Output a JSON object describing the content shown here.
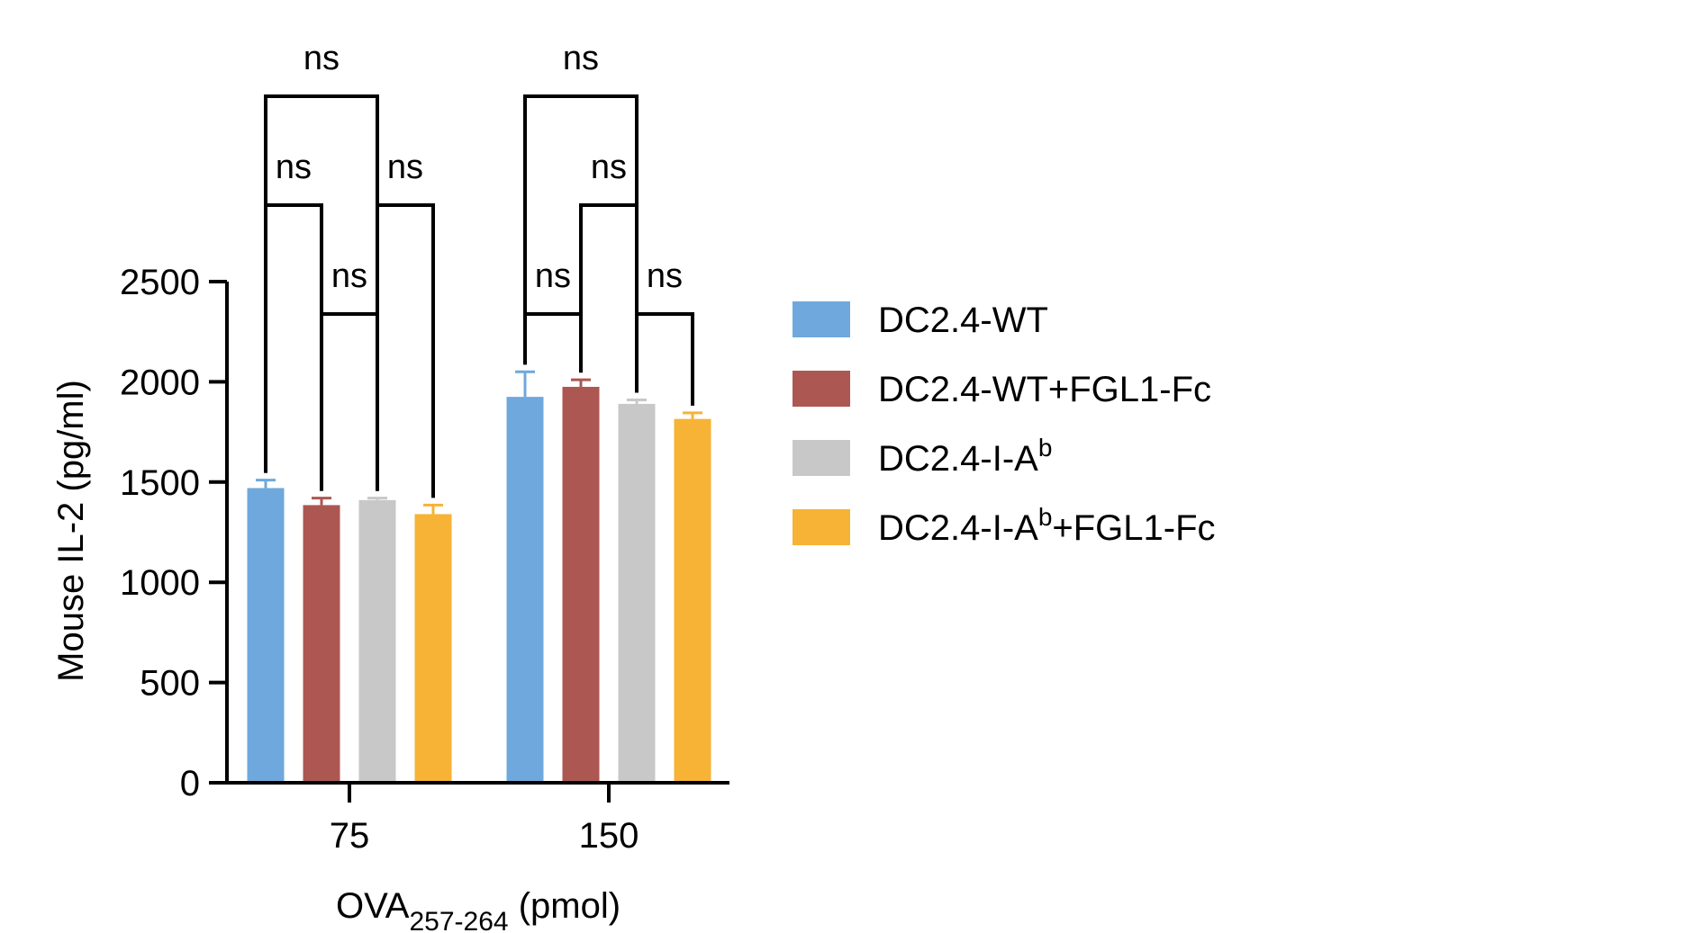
{
  "chart_data": {
    "type": "bar",
    "title": "",
    "xlabel": {
      "main": "OVA",
      "subscript": "257-264",
      "suffix": " (pmol)"
    },
    "ylabel": "Mouse IL-2 (pg/ml)",
    "ylim": [
      0,
      2500
    ],
    "yticks": [
      0,
      500,
      1000,
      1500,
      2000,
      2500
    ],
    "categories": [
      "75",
      "150"
    ],
    "series": [
      {
        "name": "DC2.4-WT",
        "legend_parts": [
          "DC2.4-WT"
        ],
        "color": "#6fa8dc",
        "values": [
          1470,
          1925
        ],
        "errors": [
          40,
          125
        ]
      },
      {
        "name": "DC2.4-WT+FGL1-Fc",
        "legend_parts": [
          "DC2.4-WT+FGL1-Fc"
        ],
        "color": "#ac5752",
        "values": [
          1385,
          1975
        ],
        "errors": [
          35,
          35
        ]
      },
      {
        "name": "DC2.4-I-Ab",
        "legend_parts": [
          "DC2.4-I-A",
          "b",
          ""
        ],
        "color": "#c8c8c8",
        "values": [
          1410,
          1890
        ],
        "errors": [
          10,
          20
        ]
      },
      {
        "name": "DC2.4-I-Ab+FGL1-Fc",
        "legend_parts": [
          "DC2.4-I-A",
          "b",
          "+FGL1-Fc"
        ],
        "color": "#f6b335",
        "values": [
          1340,
          1815
        ],
        "errors": [
          45,
          30
        ]
      }
    ],
    "significance": [
      {
        "category": 0,
        "from": 0,
        "to": 2,
        "level": 3,
        "label": "ns"
      },
      {
        "category": 0,
        "from": 0,
        "to": 1,
        "level": 2,
        "label": "ns"
      },
      {
        "category": 0,
        "from": 2,
        "to": 3,
        "level": 2,
        "label": "ns"
      },
      {
        "category": 0,
        "from": 1,
        "to": 2,
        "level": 1,
        "label": "ns"
      },
      {
        "category": 1,
        "from": 0,
        "to": 2,
        "level": 3,
        "label": "ns"
      },
      {
        "category": 1,
        "from": 1,
        "to": 2,
        "level": 2,
        "label": "ns"
      },
      {
        "category": 1,
        "from": 0,
        "to": 1,
        "level": 1,
        "label": "ns"
      },
      {
        "category": 1,
        "from": 2,
        "to": 3,
        "level": 1,
        "label": "ns"
      }
    ],
    "legend_position": "right"
  }
}
